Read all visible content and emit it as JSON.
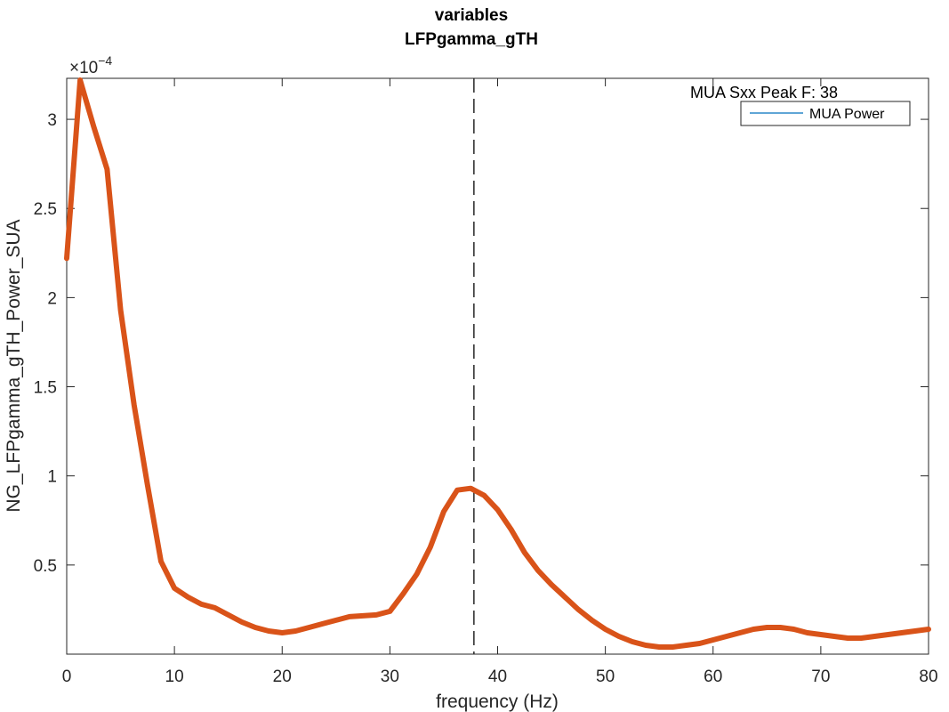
{
  "chart_data": {
    "type": "line",
    "title": [
      "variables",
      "LFPgamma_gTH"
    ],
    "xlabel": "frequency (Hz)",
    "ylabel": "NG_LFPgamma_gTH_Power_SUA",
    "y_exponent_base": "×10",
    "y_exponent_power": "−4",
    "xlim": [
      0,
      80
    ],
    "ylim": [
      0,
      3.23
    ],
    "xticks": [
      0,
      10,
      20,
      30,
      40,
      50,
      60,
      70,
      80
    ],
    "xtick_labels": [
      "0",
      "10",
      "20",
      "30",
      "40",
      "50",
      "60",
      "70",
      "80"
    ],
    "yticks": [
      0.5,
      1,
      1.5,
      2,
      2.5,
      3
    ],
    "ytick_labels": [
      "0.5",
      "1",
      "1.5",
      "2",
      "2.5",
      "3"
    ],
    "grid": false,
    "legend": {
      "location": "top-right",
      "entries": [
        "MUA Power"
      ]
    },
    "annotation": "MUA Sxx Peak F: 38",
    "vline_x": 37.8,
    "series": [
      {
        "color": "#D95319",
        "x": [
          0,
          1.25,
          2.5,
          3.75,
          5,
          6.25,
          7.5,
          8.75,
          10,
          11.25,
          12.5,
          13.75,
          15,
          16.25,
          17.5,
          18.75,
          20,
          21.25,
          22.5,
          23.75,
          25,
          26.25,
          27.5,
          28.75,
          30,
          31.25,
          32.5,
          33.75,
          35,
          36.25,
          37.5,
          38.75,
          40,
          41.25,
          42.5,
          43.75,
          45,
          46.25,
          47.5,
          48.75,
          50,
          51.25,
          52.5,
          53.75,
          55,
          56.25,
          57.5,
          58.75,
          60,
          61.25,
          62.5,
          63.75,
          65,
          66.25,
          67.5,
          68.75,
          70,
          71.25,
          72.5,
          73.75,
          75,
          76.25,
          77.5,
          78.75,
          80
        ],
        "y": [
          2.22,
          3.22,
          2.96,
          2.72,
          1.93,
          1.4,
          0.95,
          0.52,
          0.37,
          0.32,
          0.28,
          0.26,
          0.22,
          0.18,
          0.15,
          0.13,
          0.12,
          0.13,
          0.15,
          0.17,
          0.19,
          0.21,
          0.215,
          0.22,
          0.24,
          0.34,
          0.45,
          0.6,
          0.8,
          0.92,
          0.93,
          0.89,
          0.81,
          0.7,
          0.57,
          0.47,
          0.39,
          0.32,
          0.25,
          0.19,
          0.14,
          0.1,
          0.07,
          0.05,
          0.04,
          0.04,
          0.05,
          0.06,
          0.08,
          0.1,
          0.12,
          0.14,
          0.15,
          0.15,
          0.14,
          0.12,
          0.11,
          0.1,
          0.09,
          0.09,
          0.1,
          0.11,
          0.12,
          0.13,
          0.14
        ]
      }
    ],
    "legend_line_color": "#0072BD"
  }
}
